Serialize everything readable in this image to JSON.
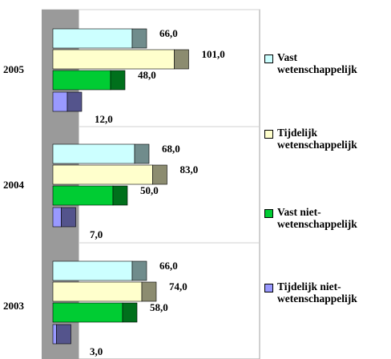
{
  "chart_data": {
    "type": "bar",
    "orientation": "horizontal",
    "style": "3d",
    "categories": [
      "2005",
      "2004",
      "2003"
    ],
    "series": [
      {
        "name": "Vast\nwetenschappelijk",
        "values": [
          66.0,
          68.0,
          66.0
        ],
        "color": "#ccffff"
      },
      {
        "name": "Tijdelijk\nwetenschappelijk",
        "values": [
          101.0,
          83.0,
          74.0
        ],
        "color": "#ffffcc"
      },
      {
        "name": "Vast niet-\nwetenschappelijk",
        "values": [
          48.0,
          50.0,
          58.0
        ],
        "color": "#00cc33"
      },
      {
        "name": "Tijdelijk niet-\nwetenschappelijk",
        "values": [
          12.0,
          7.0,
          3.0
        ],
        "color": "#9999ff"
      }
    ],
    "value_labels": [
      [
        "66,0",
        "101,0",
        "48,0",
        "12,0"
      ],
      [
        "68,0",
        "83,0",
        "50,0",
        "7,0"
      ],
      [
        "66,0",
        "74,0",
        "58,0",
        "3,0"
      ]
    ],
    "xlim": [
      0,
      120
    ],
    "grid": true,
    "legend_position": "right"
  }
}
